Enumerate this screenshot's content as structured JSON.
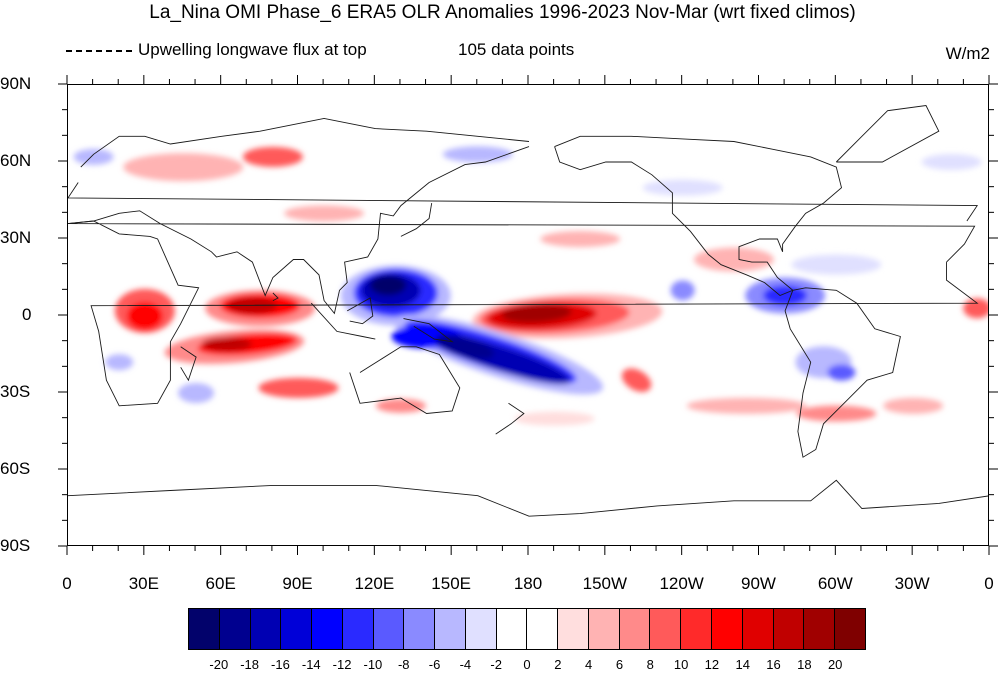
{
  "header": {
    "title": "La_Nina OMI Phase_6 ERA5 OLR Anomalies 1996-2023 Nov-Mar (wrt fixed climos)",
    "dash_legend": "Upwelling longwave flux at top",
    "data_points": "105 data points",
    "units": "W/m2"
  },
  "axes": {
    "lat_labels": [
      "90N",
      "60N",
      "30N",
      "0",
      "30S",
      "60S",
      "90S"
    ],
    "lon_labels": [
      "0",
      "30E",
      "60E",
      "90E",
      "120E",
      "150E",
      "180",
      "150W",
      "120W",
      "90W",
      "60W",
      "30W",
      "0"
    ]
  },
  "colorbar": {
    "labels": [
      "-20",
      "-18",
      "-16",
      "-14",
      "-12",
      "-10",
      "-8",
      "-6",
      "-4",
      "-2",
      "0",
      "2",
      "4",
      "6",
      "8",
      "10",
      "12",
      "14",
      "16",
      "18",
      "20"
    ],
    "colors": [
      "#02026b",
      "#00008f",
      "#0000b3",
      "#0000d8",
      "#0000ff",
      "#2a2aff",
      "#5a5aff",
      "#8a8aff",
      "#b8b8ff",
      "#e0e0ff",
      "#ffffff",
      "#ffffff",
      "#ffdede",
      "#ffb3b3",
      "#ff8a8a",
      "#ff5a5a",
      "#ff2a2a",
      "#ff0000",
      "#e00000",
      "#c00000",
      "#a00000",
      "#7f0000"
    ]
  },
  "map": {
    "projection": "cylindrical-equidistant",
    "lon_range": [
      0,
      360
    ],
    "lat_range": [
      -90,
      90
    ],
    "anomaly_regions": [
      {
        "name": "central-pacific-positive",
        "lon": 186,
        "lat": 0,
        "value": 20
      },
      {
        "name": "west-pacific-negative",
        "lon": 128,
        "lat": 8,
        "value": -20
      },
      {
        "name": "south-pacific-convergence-negative",
        "lon": 170,
        "lat": -15,
        "value": -18
      },
      {
        "name": "indian-ocean-positive",
        "lon": 75,
        "lat": 2,
        "value": 14
      },
      {
        "name": "south-indian-positive",
        "lon": 70,
        "lat": -12,
        "value": 12
      },
      {
        "name": "maritime-continent-negative",
        "lon": 140,
        "lat": -12,
        "value": -14
      },
      {
        "name": "central-america-negative",
        "lon": 280,
        "lat": 8,
        "value": -10
      },
      {
        "name": "south-america-negative",
        "lon": 300,
        "lat": -18,
        "value": -6
      },
      {
        "name": "east-atlantic-positive",
        "lon": 355,
        "lat": 3,
        "value": 8
      },
      {
        "name": "gulf-mexico-positive",
        "lon": 270,
        "lat": 22,
        "value": 4
      },
      {
        "name": "north-europe-positive",
        "lon": 40,
        "lat": 60,
        "value": 6
      }
    ]
  }
}
